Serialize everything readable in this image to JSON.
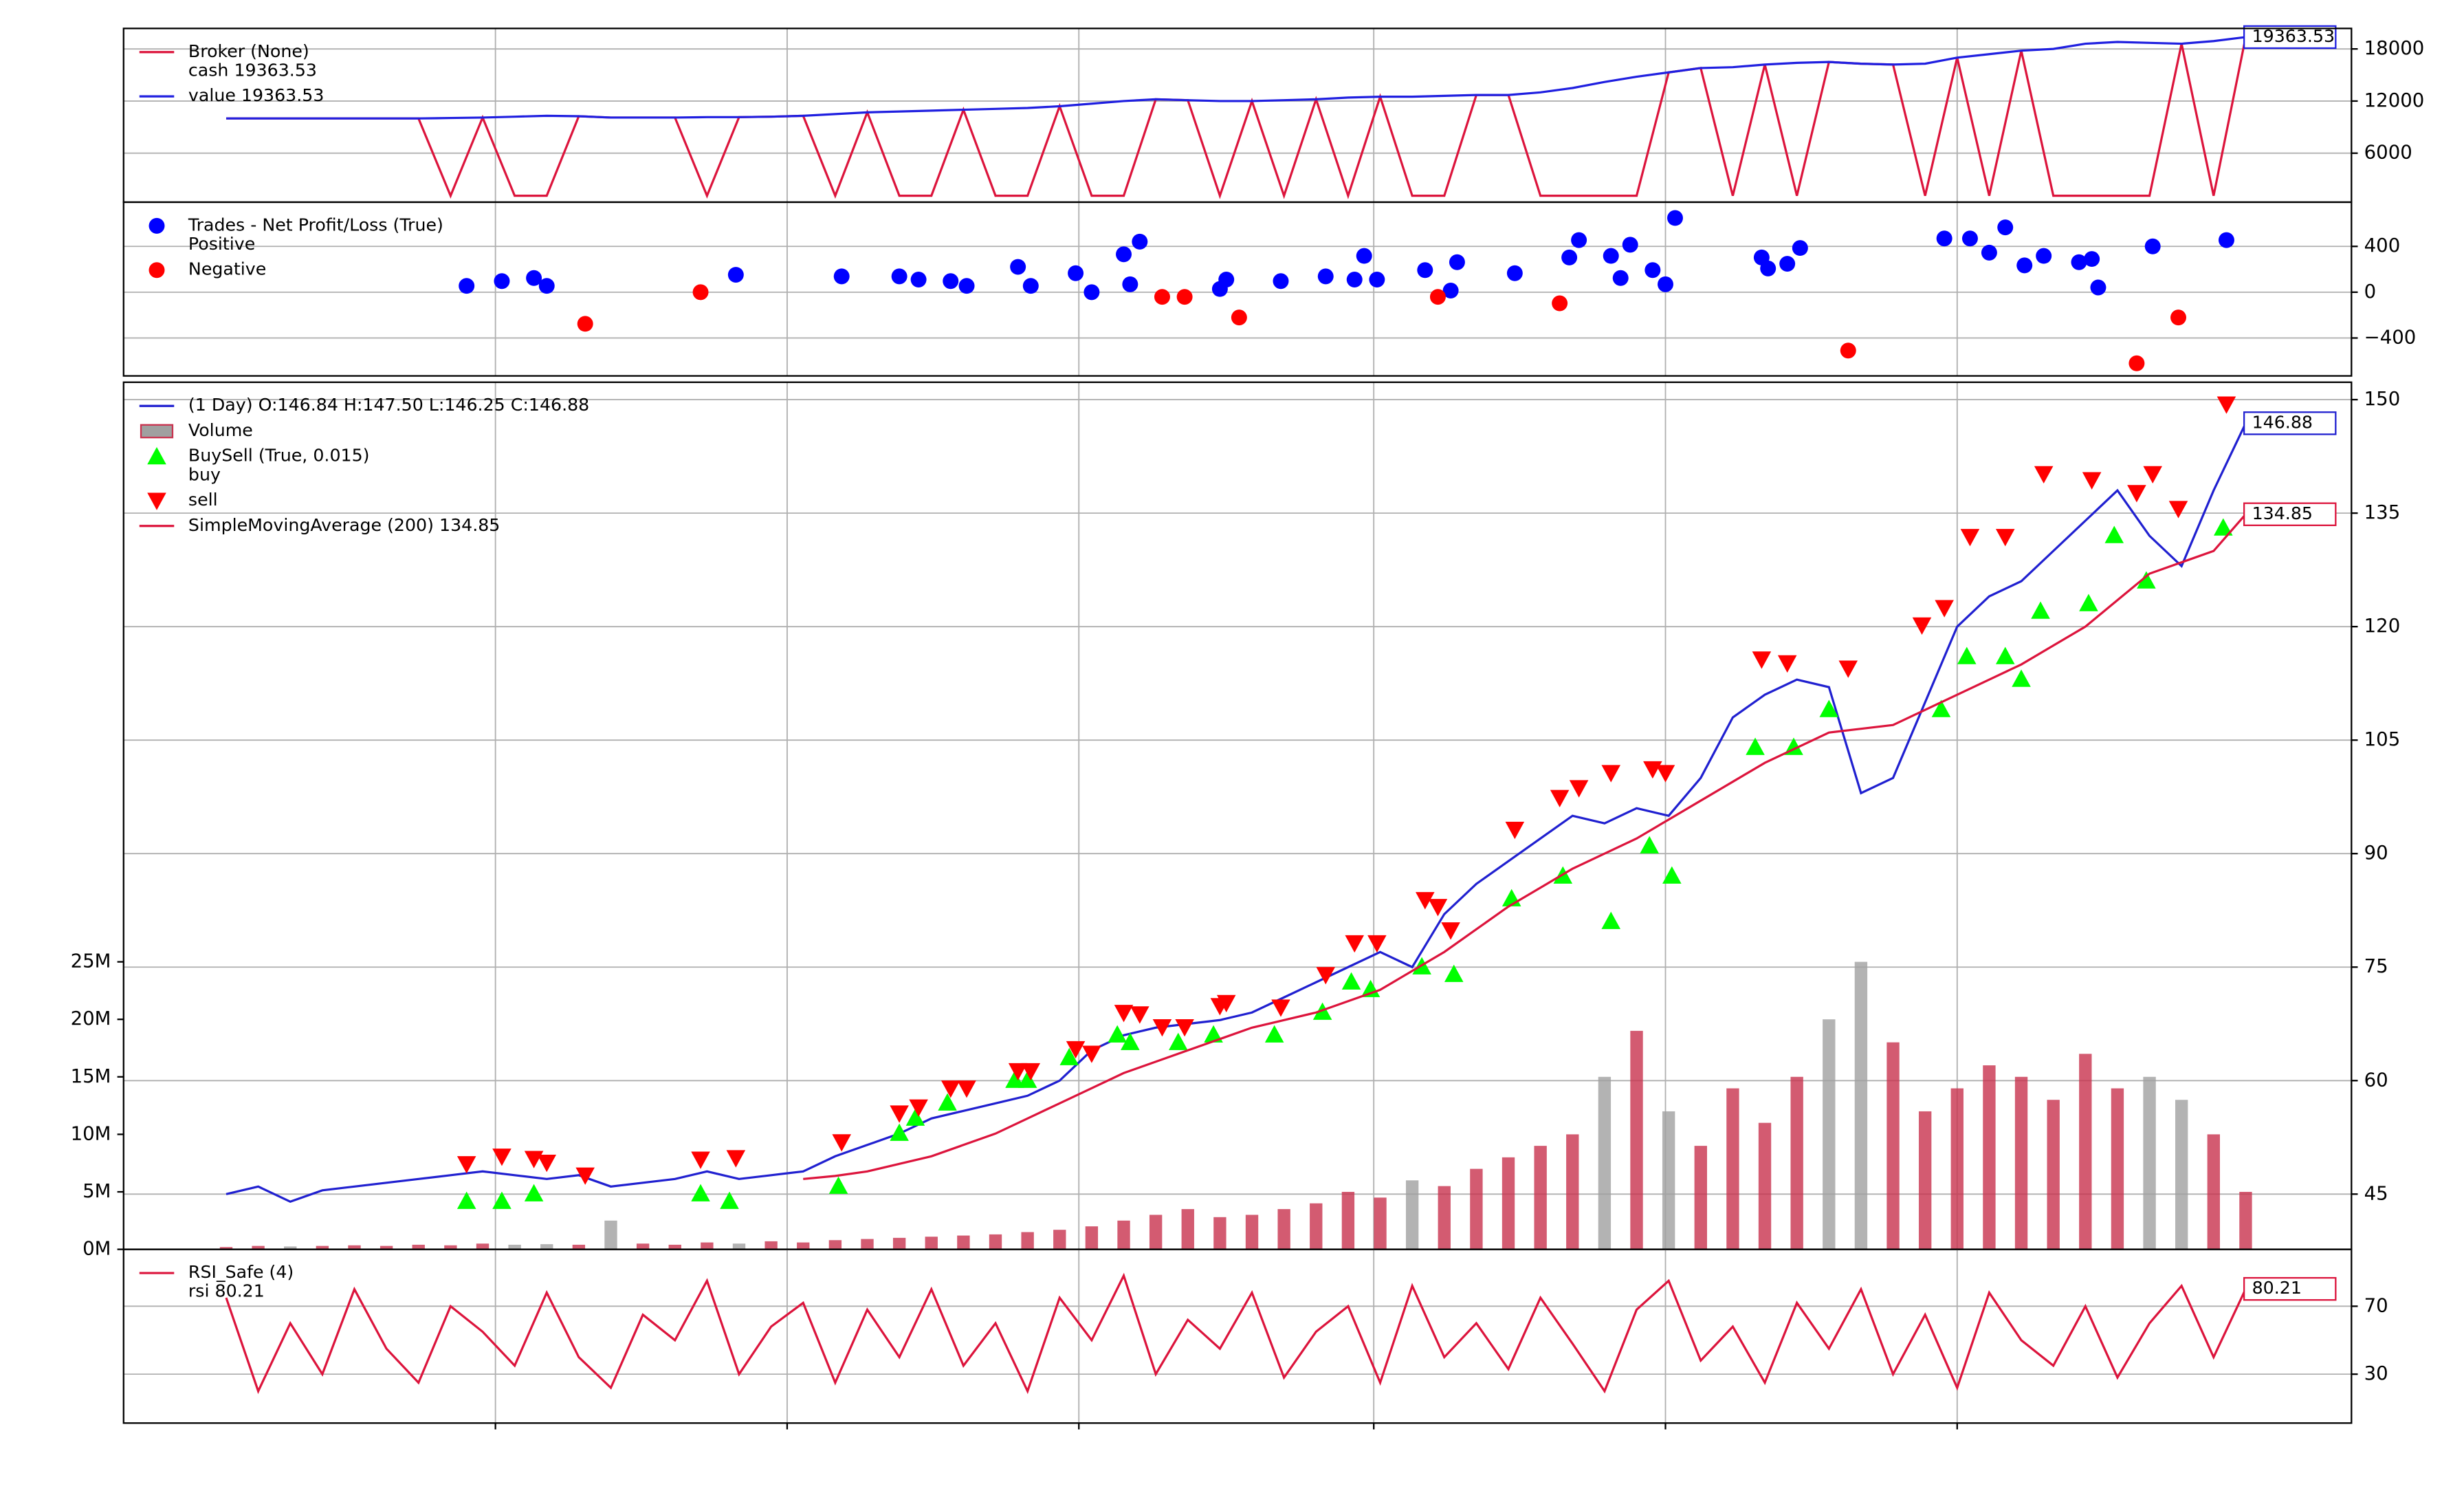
{
  "chart_data": [
    {
      "type": "line",
      "xlim": [
        -3.2,
        66.3
      ],
      "xticks": [
        8.4,
        17.5,
        26.6,
        35.8,
        44.9,
        54.0
      ],
      "ylim": [
        360,
        20360
      ],
      "yticks": [
        6000,
        12000,
        18000
      ],
      "grid": true,
      "series": [
        {
          "name": "cash 19363.53",
          "legend_title": "Broker (None)",
          "type": "line",
          "color": "#dc143c",
          "values": [
            10000,
            10000,
            10000,
            10000,
            10000,
            10000,
            10000,
            1100,
            10100,
            1100,
            1100,
            10250,
            10100,
            10100,
            10100,
            1100,
            10150,
            10200,
            10300,
            1100,
            10700,
            1100,
            1100,
            11000,
            1100,
            1100,
            11400,
            1100,
            1100,
            12200,
            12100,
            1100,
            12000,
            1100,
            12200,
            1100,
            12500,
            1100,
            1100,
            12700,
            12700,
            1100,
            1100,
            1100,
            1100,
            15300,
            15800,
            1100,
            16200,
            1100,
            16500,
            16300,
            16200,
            1100,
            17000,
            1100,
            17800,
            1100,
            1100,
            1100,
            1100,
            18600,
            1100,
            19363.53
          ]
        },
        {
          "name": "value 19363.53",
          "type": "line",
          "color": "#1f1fe0",
          "tag": true,
          "values": [
            10000,
            10000,
            10000,
            10000,
            10000,
            10000,
            10000,
            10050,
            10100,
            10200,
            10300,
            10250,
            10100,
            10100,
            10100,
            10150,
            10150,
            10200,
            10300,
            10500,
            10700,
            10800,
            10900,
            11000,
            11100,
            11200,
            11400,
            11700,
            12000,
            12200,
            12100,
            12000,
            12000,
            12100,
            12200,
            12400,
            12500,
            12500,
            12600,
            12700,
            12700,
            13000,
            13500,
            14200,
            14800,
            15300,
            15800,
            15900,
            16200,
            16400,
            16500,
            16300,
            16200,
            16300,
            17000,
            17400,
            17800,
            18000,
            18600,
            18800,
            18700,
            18600,
            18900,
            19363.53
          ]
        }
      ]
    },
    {
      "type": "scatter",
      "xlim": [
        -3.2,
        66.3
      ],
      "ylim": [
        -731,
        786
      ],
      "yticks": [
        {
          "value": -400,
          "label": "−400"
        },
        0,
        400
      ],
      "grid": true,
      "series": [
        {
          "name": "Positive",
          "legend_title": "Trades - Net Profit/Loss (True)",
          "type": "scatter",
          "color": "#0000ff",
          "x": [
            7.5,
            8.6,
            9.6,
            10.0,
            15.9,
            19.2,
            21.0,
            21.6,
            22.6,
            23.1,
            24.7,
            25.1,
            26.5,
            27.0,
            28.0,
            28.2,
            28.5,
            31.0,
            31.2,
            32.9,
            34.3,
            35.2,
            35.5,
            35.9,
            37.4,
            38.2,
            38.4,
            40.2,
            41.9,
            42.2,
            43.2,
            43.5,
            43.8,
            44.5,
            44.9,
            45.2,
            47.9,
            48.1,
            48.7,
            49.1,
            53.6,
            54.4,
            55.0,
            55.5,
            56.1,
            56.7,
            57.8,
            58.2,
            58.4,
            60.1,
            62.4
          ],
          "values": [
            55,
            97,
            124,
            55,
            152,
            138,
            138,
            110,
            97,
            55,
            221,
            55,
            166,
            0,
            331,
            69,
            441,
            28,
            110,
            97,
            138,
            110,
            317,
            110,
            193,
            14,
            262,
            166,
            303,
            455,
            317,
            124,
            414,
            193,
            69,
            648,
            303,
            207,
            248,
            386,
            469,
            469,
            345,
            566,
            234,
            317,
            262,
            290,
            41,
            400,
            455
          ]
        },
        {
          "name": "Negative",
          "type": "scatter",
          "color": "#ff0000",
          "x": [
            11.2,
            14.8,
            29.2,
            29.9,
            31.6,
            37.8,
            41.6,
            50.6,
            59.6,
            60.9
          ],
          "values": [
            -276,
            0,
            -41,
            -41,
            -221,
            -41,
            -97,
            -510,
            -621,
            -221
          ]
        }
      ]
    },
    {
      "type": "line",
      "xlim": [
        -3.2,
        66.3
      ],
      "ylim": [
        37.7,
        152.3
      ],
      "yticks": [
        45,
        60,
        75,
        90,
        105,
        120,
        135,
        150
      ],
      "grid": true,
      "y2lim": [
        0,
        75400000
      ],
      "y2ticks": [
        {
          "value": 0,
          "label": "0M"
        },
        {
          "value": 5000000,
          "label": "5M"
        },
        {
          "value": 10000000,
          "label": "10M"
        },
        {
          "value": 15000000,
          "label": "15M"
        },
        {
          "value": 20000000,
          "label": "20M"
        },
        {
          "value": 25000000,
          "label": "25M"
        }
      ],
      "series": [
        {
          "name": " (1 Day) O:146.84 H:147.50 L:146.25 C:146.88",
          "type": "line",
          "color": "#2020d0",
          "tag": true,
          "values": [
            45,
            46,
            44,
            45.5,
            46,
            46.5,
            47,
            47.5,
            48,
            47.5,
            47,
            47.5,
            46,
            46.5,
            47,
            48,
            47,
            47.5,
            48,
            50,
            51.5,
            53,
            55,
            56,
            57,
            58,
            60,
            64,
            66,
            67,
            67.5,
            68,
            69,
            71,
            73,
            75,
            77,
            75,
            82,
            86,
            89,
            92,
            95,
            94,
            96,
            95,
            100,
            108,
            111,
            113,
            112,
            98,
            100,
            110,
            120,
            124,
            126,
            130,
            134,
            138,
            132,
            128,
            138,
            146.88
          ]
        },
        {
          "name": "Volume",
          "type": "bar",
          "axis": "y2",
          "up_color": "#c8324e",
          "down_color": "#a0a0a0",
          "values": [
            200000,
            300000,
            250000,
            300000,
            350000,
            300000,
            400000,
            350000,
            500000,
            400000,
            450000,
            400000,
            2500000,
            500000,
            400000,
            600000,
            500000,
            700000,
            600000,
            800000,
            900000,
            1000000,
            1100000,
            1200000,
            1300000,
            1500000,
            1700000,
            2000000,
            2500000,
            3000000,
            3500000,
            2800000,
            3000000,
            3500000,
            4000000,
            5000000,
            4500000,
            6000000,
            5500000,
            7000000,
            8000000,
            9000000,
            10000000,
            15000000,
            19000000,
            12000000,
            9000000,
            14000000,
            11000000,
            15000000,
            20000000,
            25000000,
            18000000,
            12000000,
            14000000,
            16000000,
            15000000,
            13000000,
            17000000,
            14000000,
            15000000,
            13000000,
            10000000,
            5000000
          ]
        },
        {
          "name": "buy",
          "legend_title": "BuySell (True, 0.015)",
          "type": "marker-up",
          "color": "#00ff00",
          "x": [
            7.5,
            8.6,
            9.6,
            14.8,
            15.7,
            19.1,
            21.0,
            21.5,
            22.5,
            24.6,
            25.0,
            26.3,
            27.8,
            28.2,
            29.7,
            30.8,
            32.7,
            34.2,
            35.1,
            35.7,
            37.3,
            38.3,
            40.1,
            41.7,
            43.2,
            44.4,
            45.1,
            47.7,
            48.9,
            50.0,
            53.5,
            54.3,
            55.5,
            56.0,
            56.6,
            58.1,
            58.9,
            59.9,
            62.3
          ],
          "values": [
            47,
            47,
            48,
            48,
            47,
            49,
            56,
            58,
            60,
            63,
            63,
            66,
            69,
            68,
            68,
            69,
            69,
            72,
            76,
            75,
            78,
            77,
            87,
            90,
            84,
            94,
            90,
            107,
            107,
            112,
            112,
            119,
            119,
            116,
            125,
            126,
            135,
            129,
            136
          ]
        },
        {
          "name": "sell",
          "type": "marker-down",
          "color": "#ff0000",
          "x": [
            7.5,
            8.6,
            9.6,
            10.0,
            11.2,
            14.8,
            15.9,
            19.2,
            21.0,
            21.6,
            22.6,
            23.1,
            24.7,
            25.1,
            26.5,
            27.0,
            28.0,
            28.5,
            29.2,
            29.9,
            31.0,
            31.2,
            32.9,
            34.3,
            35.2,
            35.9,
            37.4,
            37.8,
            38.2,
            40.2,
            41.6,
            42.2,
            43.2,
            44.5,
            44.9,
            47.9,
            48.7,
            50.6,
            52.9,
            53.6,
            54.4,
            55.5,
            56.7,
            58.2,
            59.6,
            60.1,
            60.9,
            62.4
          ],
          "values": [
            47.3,
            48.3,
            48,
            47.5,
            45.8,
            47.9,
            48.1,
            50.2,
            54,
            54.8,
            57.3,
            57.3,
            59.6,
            59.6,
            62.5,
            61.9,
            67.3,
            67.1,
            65.4,
            65.4,
            68.2,
            68.6,
            68,
            72.3,
            76.5,
            76.5,
            82.2,
            81.3,
            78.2,
            91.5,
            95.7,
            97,
            99,
            99.5,
            99,
            114,
            113.5,
            112.8,
            118.5,
            120.8,
            130.2,
            130.2,
            138.5,
            137.7,
            136,
            138.5,
            133.9,
            147.7
          ]
        },
        {
          "name": "SimpleMovingAverage (200) 134.85",
          "type": "line",
          "color": "#dc143c",
          "tag": true,
          "values": [
            null,
            null,
            null,
            null,
            null,
            null,
            null,
            null,
            null,
            null,
            null,
            null,
            null,
            null,
            null,
            null,
            null,
            null,
            47,
            47.4,
            48,
            49,
            50,
            51.5,
            53,
            55,
            57,
            59,
            61,
            62.5,
            64,
            65.5,
            67,
            68,
            69,
            70.5,
            72,
            74.5,
            77,
            80,
            83,
            85.5,
            88,
            90,
            92,
            94.5,
            97,
            99.5,
            102,
            104,
            106,
            106.5,
            107,
            109,
            111,
            113,
            115,
            117.5,
            120,
            123.5,
            127,
            128.5,
            130,
            134.85
          ]
        }
      ]
    },
    {
      "type": "line",
      "xlim": [
        -3.2,
        66.3
      ],
      "ylim": [
        1.2,
        103.5
      ],
      "yticks": [
        30,
        70
      ],
      "grid": true,
      "series": [
        {
          "name": "rsi 80.21",
          "legend_title": "RSI_Safe (4)",
          "type": "line",
          "color": "#dc143c",
          "tag": true,
          "values": [
            75,
            20,
            60,
            30,
            80,
            45,
            25,
            70,
            55,
            35,
            78,
            40,
            22,
            65,
            50,
            85,
            30,
            58,
            72,
            25,
            68,
            40,
            80,
            35,
            60,
            20,
            75,
            50,
            88,
            30,
            62,
            45,
            78,
            28,
            55,
            70,
            25,
            82,
            40,
            60,
            33,
            75,
            48,
            20,
            68,
            85,
            38,
            58,
            25,
            72,
            45,
            80,
            30,
            65,
            22,
            78,
            50,
            35,
            70,
            28,
            60,
            82,
            40,
            80.21
          ]
        }
      ]
    }
  ]
}
